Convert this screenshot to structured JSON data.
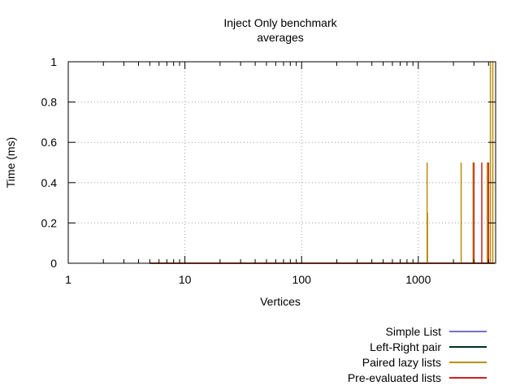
{
  "chart_data": {
    "type": "line",
    "title": "Inject Only benchmark",
    "subtitle": "averages",
    "xlabel": "Vertices",
    "ylabel": "Time (ms)",
    "x_scale": "log",
    "xlim": [
      1,
      4600
    ],
    "ylim": [
      0,
      1
    ],
    "x_ticks": [
      1,
      10,
      100,
      1000
    ],
    "x_tick_labels": [
      "1",
      "10",
      "100",
      "1000"
    ],
    "y_ticks": [
      0,
      0.2,
      0.4,
      0.6,
      0.8,
      1
    ],
    "y_tick_labels": [
      "0",
      "0.2",
      "0.4",
      "0.6",
      "0.8",
      "1"
    ],
    "grid": true,
    "legend_position": "below-right",
    "series": [
      {
        "name": "Simple List",
        "color": "#7570c0",
        "x": [
          5,
          4500
        ],
        "y": [
          0,
          0
        ]
      },
      {
        "name": "Left-Right pair",
        "color": "#003020",
        "x": [
          5,
          4500
        ],
        "y": [
          0,
          0
        ]
      },
      {
        "name": "Paired lazy lists",
        "color": "#b8900a",
        "x": [
          5,
          1190,
          1190,
          1190,
          1200,
          1200,
          1200,
          2330,
          2330,
          2330,
          2950,
          2950,
          2950,
          3900,
          3900,
          3900,
          4150,
          4150,
          4150,
          4350,
          4350,
          4350,
          4500
        ],
        "y": [
          0,
          0,
          0.5,
          0,
          0,
          0.25,
          0,
          0,
          0.5,
          0,
          0,
          0.5,
          0,
          0,
          0.5,
          0,
          0,
          1,
          0,
          0,
          1,
          0,
          0
        ]
      },
      {
        "name": "Pre-evaluated lists",
        "color": "#d02020",
        "x": [
          5,
          3000,
          3000,
          3000,
          3500,
          3500,
          3500,
          4000,
          4000,
          4000,
          4500
        ],
        "y": [
          0,
          0,
          0.5,
          0,
          0,
          0.5,
          0,
          0,
          0.5,
          0,
          0
        ]
      }
    ]
  }
}
